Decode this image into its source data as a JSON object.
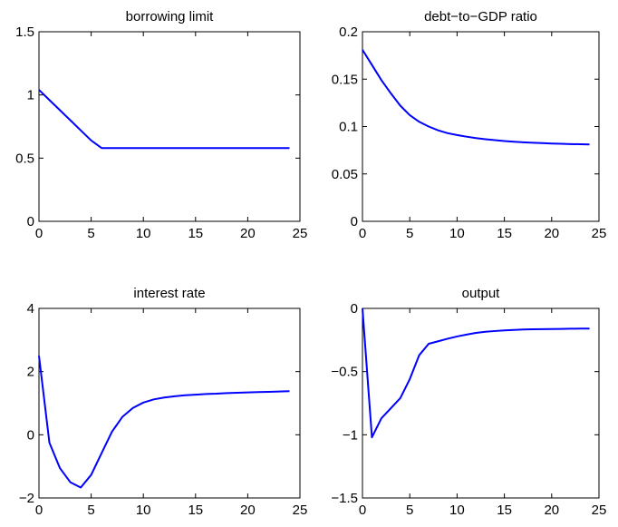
{
  "figure": {
    "line_color": "#0000ff",
    "background": "#ffffff"
  },
  "chart_data": [
    {
      "type": "line",
      "title": "borrowing limit",
      "xlim": [
        0,
        25
      ],
      "ylim": [
        0,
        1.5
      ],
      "xticks": [
        0,
        5,
        10,
        15,
        20,
        25
      ],
      "xtick_labels": [
        "0",
        "5",
        "10",
        "15",
        "20",
        "25"
      ],
      "yticks": [
        0,
        0.5,
        1,
        1.5
      ],
      "ytick_labels": [
        "0",
        "0.5",
        "1",
        "1.5"
      ],
      "grid": false,
      "series": [
        {
          "x": [
            0,
            1,
            2,
            3,
            4,
            5,
            6,
            7,
            8,
            9,
            10,
            11,
            12,
            13,
            14,
            15,
            16,
            17,
            18,
            19,
            20,
            21,
            22,
            23,
            24
          ],
          "y": [
            1.04,
            0.96,
            0.88,
            0.8,
            0.72,
            0.64,
            0.58,
            0.58,
            0.58,
            0.58,
            0.58,
            0.58,
            0.58,
            0.58,
            0.58,
            0.58,
            0.58,
            0.58,
            0.58,
            0.58,
            0.58,
            0.58,
            0.58,
            0.58,
            0.58
          ]
        }
      ]
    },
    {
      "type": "line",
      "title": "debt−to−GDP ratio",
      "xlim": [
        0,
        25
      ],
      "ylim": [
        0,
        0.2
      ],
      "xticks": [
        0,
        5,
        10,
        15,
        20,
        25
      ],
      "xtick_labels": [
        "0",
        "5",
        "10",
        "15",
        "20",
        "25"
      ],
      "yticks": [
        0,
        0.05,
        0.1,
        0.15,
        0.2
      ],
      "ytick_labels": [
        "0",
        "0.05",
        "0.1",
        "0.15",
        "0.2"
      ],
      "grid": false,
      "series": [
        {
          "x": [
            0,
            1,
            2,
            3,
            4,
            5,
            6,
            7,
            8,
            9,
            10,
            11,
            12,
            13,
            14,
            15,
            16,
            17,
            18,
            19,
            20,
            21,
            22,
            23,
            24
          ],
          "y": [
            0.181,
            0.165,
            0.149,
            0.135,
            0.122,
            0.112,
            0.105,
            0.1,
            0.096,
            0.093,
            0.091,
            0.0893,
            0.0878,
            0.0866,
            0.0856,
            0.0847,
            0.084,
            0.0834,
            0.0829,
            0.0825,
            0.0821,
            0.0818,
            0.0815,
            0.0813,
            0.0811
          ]
        }
      ]
    },
    {
      "type": "line",
      "title": "interest rate",
      "xlim": [
        0,
        25
      ],
      "ylim": [
        -2,
        4
      ],
      "xticks": [
        0,
        5,
        10,
        15,
        20,
        25
      ],
      "xtick_labels": [
        "0",
        "5",
        "10",
        "15",
        "20",
        "25"
      ],
      "yticks": [
        -2,
        0,
        2,
        4
      ],
      "ytick_labels": [
        "−2",
        "0",
        "2",
        "4"
      ],
      "grid": false,
      "series": [
        {
          "x": [
            0,
            1,
            2,
            3,
            4,
            5,
            6,
            7,
            8,
            9,
            10,
            11,
            12,
            13,
            14,
            15,
            16,
            17,
            18,
            19,
            20,
            21,
            22,
            23,
            24
          ],
          "y": [
            2.5,
            -0.25,
            -1.05,
            -1.5,
            -1.67,
            -1.27,
            -0.58,
            0.1,
            0.57,
            0.85,
            1.02,
            1.12,
            1.18,
            1.22,
            1.25,
            1.27,
            1.29,
            1.3,
            1.32,
            1.33,
            1.34,
            1.35,
            1.36,
            1.37,
            1.38
          ]
        }
      ]
    },
    {
      "type": "line",
      "title": "output",
      "xlim": [
        0,
        25
      ],
      "ylim": [
        -1.5,
        0
      ],
      "xticks": [
        0,
        5,
        10,
        15,
        20,
        25
      ],
      "xtick_labels": [
        "0",
        "5",
        "10",
        "15",
        "20",
        "25"
      ],
      "yticks": [
        -1.5,
        -1,
        -0.5,
        0
      ],
      "ytick_labels": [
        "−1.5",
        "−1",
        "−0.5",
        "0"
      ],
      "grid": false,
      "series": [
        {
          "x": [
            0,
            1,
            2,
            3,
            4,
            5,
            6,
            7,
            8,
            9,
            10,
            11,
            12,
            13,
            14,
            15,
            16,
            17,
            18,
            19,
            20,
            21,
            22,
            23,
            24
          ],
          "y": [
            0,
            -1.02,
            -0.87,
            -0.79,
            -0.71,
            -0.56,
            -0.37,
            -0.28,
            -0.26,
            -0.24,
            -0.222,
            -0.207,
            -0.194,
            -0.185,
            -0.179,
            -0.174,
            -0.17,
            -0.167,
            -0.165,
            -0.164,
            -0.163,
            -0.162,
            -0.161,
            -0.16,
            -0.16
          ]
        }
      ]
    }
  ]
}
